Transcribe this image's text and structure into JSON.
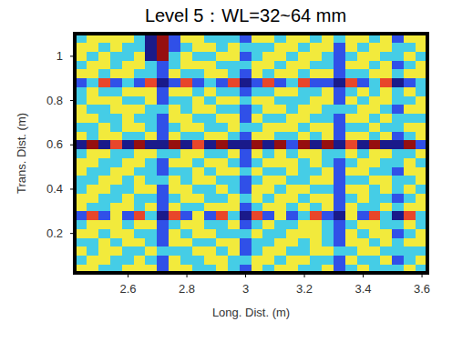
{
  "chart_data": {
    "type": "heatmap",
    "title": "Level 5：WL=32~64 mm",
    "x_label": "Long. Dist. (m)",
    "y_label": "Trans. Dist. (m)",
    "xlim": [
      2.42,
      3.62
    ],
    "xticks": [
      2.6,
      2.8,
      3,
      3.2,
      3.4,
      3.6
    ],
    "ylim": [
      0.02,
      1.1
    ],
    "yticks": [
      0.2,
      0.4,
      0.6,
      0.8,
      1
    ],
    "zlim": [
      -3,
      3
    ],
    "x": [
      2.44,
      2.48,
      2.52,
      2.56,
      2.6,
      2.64,
      2.68,
      2.72,
      2.76,
      2.8,
      2.84,
      2.88,
      2.92,
      2.96,
      3,
      3.04,
      3.08,
      3.12,
      3.16,
      3.2,
      3.24,
      3.28,
      3.32,
      3.36,
      3.4,
      3.44,
      3.48,
      3.52,
      3.56,
      3.6
    ],
    "y": [
      0.04,
      0.08,
      0.12,
      0.16,
      0.2,
      0.24,
      0.28,
      0.32,
      0.36,
      0.4,
      0.44,
      0.48,
      0.52,
      0.56,
      0.6,
      0.64,
      0.68,
      0.72,
      0.76,
      0.8,
      0.84,
      0.88,
      0.92,
      0.96,
      1,
      1.04,
      1.08
    ],
    "cells": [
      [
        1,
        1,
        -1,
        -1,
        1,
        1,
        1,
        -2,
        1,
        1,
        -1,
        -1,
        1,
        -1,
        -2,
        1,
        -1,
        1,
        1,
        -1,
        -1,
        1,
        -2,
        -1,
        1,
        -1,
        -1,
        -1,
        1,
        -1
      ],
      [
        -1,
        1,
        1,
        -1,
        -1,
        1,
        -1,
        -2,
        1,
        -1,
        -1,
        1,
        1,
        -1,
        -1,
        1,
        1,
        -1,
        1,
        1,
        -1,
        -1,
        -2,
        1,
        -1,
        -1,
        1,
        -2,
        -1,
        1
      ],
      [
        1,
        -1,
        1,
        1,
        -1,
        -1,
        1,
        -1,
        -1,
        -1,
        1,
        1,
        -1,
        1,
        -2,
        -1,
        1,
        1,
        -1,
        -1,
        1,
        1,
        -1,
        -1,
        1,
        1,
        -1,
        -1,
        -1,
        -1
      ],
      [
        -1,
        -1,
        1,
        -1,
        1,
        1,
        -1,
        -2,
        1,
        1,
        -1,
        -1,
        1,
        1,
        -2,
        -1,
        -1,
        1,
        1,
        -1,
        1,
        -1,
        -2,
        1,
        1,
        -1,
        1,
        -1,
        1,
        1
      ],
      [
        1,
        1,
        -1,
        1,
        1,
        -1,
        -1,
        -2,
        1,
        -1,
        1,
        1,
        -1,
        -1,
        -1,
        1,
        -1,
        -1,
        1,
        1,
        1,
        -1,
        -2,
        1,
        -1,
        1,
        1,
        -2,
        -1,
        1
      ],
      [
        -1,
        1,
        1,
        1,
        -1,
        1,
        1,
        -2,
        -1,
        1,
        1,
        -1,
        -1,
        1,
        -2,
        -1,
        1,
        -1,
        -1,
        1,
        1,
        -1,
        -2,
        -1,
        1,
        1,
        -1,
        -1,
        1,
        -1
      ],
      [
        -2,
        2,
        -2,
        1,
        -2,
        2,
        -1,
        -3,
        2,
        -2,
        1,
        -2,
        2,
        -1,
        -3,
        2,
        -2,
        1,
        -2,
        -1,
        2,
        -2,
        -3,
        1,
        -2,
        2,
        -1,
        -3,
        2,
        -1
      ],
      [
        1,
        -1,
        -1,
        1,
        1,
        -1,
        1,
        -2,
        1,
        -1,
        -1,
        1,
        1,
        1,
        -2,
        -1,
        1,
        1,
        -1,
        1,
        -1,
        1,
        -2,
        1,
        -1,
        -1,
        1,
        -1,
        1,
        1
      ],
      [
        1,
        1,
        -1,
        -1,
        1,
        -1,
        -1,
        -2,
        -1,
        1,
        1,
        -1,
        -1,
        1,
        -1,
        1,
        -1,
        1,
        1,
        -1,
        1,
        1,
        -2,
        -1,
        1,
        -1,
        -1,
        -2,
        -1,
        1
      ],
      [
        -1,
        1,
        1,
        -1,
        -1,
        1,
        1,
        -2,
        1,
        1,
        -1,
        -1,
        1,
        -1,
        -2,
        1,
        1,
        -1,
        1,
        1,
        -1,
        -1,
        -2,
        1,
        1,
        -1,
        1,
        -1,
        1,
        -1
      ],
      [
        -1,
        -1,
        1,
        1,
        -1,
        1,
        -1,
        -1,
        1,
        -1,
        1,
        1,
        -1,
        -1,
        -2,
        -1,
        1,
        1,
        -1,
        -1,
        1,
        1,
        -2,
        -1,
        -1,
        1,
        1,
        -1,
        -1,
        1
      ],
      [
        1,
        -1,
        -1,
        1,
        1,
        -1,
        -1,
        -2,
        -1,
        -1,
        1,
        -1,
        1,
        1,
        -1,
        1,
        -1,
        -1,
        1,
        -1,
        -1,
        1,
        -2,
        1,
        1,
        -1,
        -1,
        -2,
        1,
        1
      ],
      [
        1,
        1,
        -1,
        -1,
        1,
        1,
        -1,
        -2,
        1,
        1,
        -1,
        1,
        1,
        -1,
        -2,
        -1,
        1,
        1,
        1,
        -1,
        1,
        -1,
        -2,
        -1,
        1,
        1,
        -1,
        -1,
        1,
        -1
      ],
      [
        -1,
        1,
        1,
        -1,
        -1,
        1,
        1,
        -1,
        -1,
        1,
        1,
        -1,
        -1,
        1,
        -2,
        1,
        -1,
        1,
        -1,
        1,
        1,
        -1,
        -1,
        1,
        -1,
        1,
        1,
        -1,
        -1,
        1
      ],
      [
        -3,
        3,
        -3,
        2,
        -3,
        3,
        -3,
        -3,
        3,
        -3,
        2,
        -3,
        3,
        -3,
        -3,
        3,
        -3,
        3,
        -2,
        3,
        -3,
        3,
        -3,
        2,
        -3,
        3,
        -3,
        -3,
        3,
        -2
      ],
      [
        1,
        -1,
        1,
        1,
        -1,
        -1,
        1,
        -2,
        1,
        -1,
        -1,
        1,
        1,
        -1,
        -2,
        1,
        1,
        -1,
        -1,
        1,
        -1,
        1,
        -2,
        1,
        1,
        -1,
        1,
        -2,
        -1,
        1
      ],
      [
        -1,
        -1,
        1,
        -1,
        1,
        1,
        -1,
        -2,
        -1,
        1,
        1,
        -1,
        -1,
        1,
        -1,
        -1,
        1,
        1,
        1,
        -1,
        1,
        1,
        -2,
        -1,
        -1,
        1,
        -1,
        -1,
        1,
        1
      ],
      [
        1,
        1,
        -1,
        -1,
        1,
        -1,
        -1,
        -2,
        1,
        1,
        -1,
        -1,
        1,
        1,
        -2,
        1,
        -1,
        -1,
        1,
        1,
        -1,
        -1,
        -2,
        1,
        1,
        -1,
        1,
        -1,
        -1,
        -1
      ],
      [
        1,
        -1,
        -1,
        1,
        1,
        1,
        -1,
        -1,
        1,
        -1,
        1,
        1,
        -1,
        -1,
        -2,
        -1,
        1,
        1,
        -1,
        1,
        1,
        -1,
        -1,
        -1,
        1,
        1,
        -1,
        -2,
        1,
        1
      ],
      [
        -1,
        1,
        1,
        1,
        -1,
        -1,
        1,
        -2,
        -1,
        -1,
        1,
        -1,
        1,
        1,
        -1,
        1,
        1,
        -1,
        -1,
        -1,
        1,
        1,
        -2,
        1,
        -1,
        1,
        1,
        -1,
        -1,
        1
      ],
      [
        -1,
        1,
        -1,
        -1,
        1,
        1,
        1,
        -2,
        1,
        1,
        -1,
        1,
        -1,
        -1,
        -2,
        -1,
        -1,
        1,
        1,
        -1,
        -1,
        1,
        -2,
        -1,
        1,
        -1,
        1,
        -1,
        1,
        -1
      ],
      [
        -2,
        -1,
        2,
        -2,
        -1,
        -2,
        2,
        -3,
        -2,
        2,
        -2,
        -1,
        -2,
        2,
        -3,
        -2,
        2,
        -2,
        -1,
        2,
        -2,
        -2,
        -3,
        2,
        -2,
        -1,
        2,
        -3,
        -2,
        -1
      ],
      [
        1,
        1,
        -1,
        1,
        1,
        -1,
        -1,
        -2,
        1,
        -1,
        -1,
        1,
        1,
        -1,
        -2,
        1,
        -1,
        1,
        1,
        -1,
        1,
        1,
        -2,
        -1,
        -1,
        1,
        1,
        -1,
        1,
        1
      ],
      [
        -1,
        1,
        1,
        -1,
        1,
        1,
        -1,
        -2,
        -1,
        1,
        1,
        1,
        -1,
        -1,
        -1,
        1,
        1,
        -1,
        1,
        1,
        -1,
        -1,
        -2,
        1,
        1,
        -1,
        1,
        -2,
        -1,
        1
      ],
      [
        1,
        -1,
        1,
        -1,
        -1,
        1,
        -3,
        3,
        -1,
        1,
        -1,
        -1,
        1,
        1,
        -2,
        -1,
        1,
        1,
        -1,
        1,
        1,
        -1,
        -2,
        -1,
        1,
        1,
        -1,
        -1,
        1,
        -1
      ],
      [
        1,
        1,
        -1,
        1,
        -1,
        -1,
        -3,
        3,
        -2,
        -1,
        1,
        1,
        -1,
        1,
        -1,
        -1,
        -1,
        1,
        1,
        -1,
        1,
        1,
        -2,
        1,
        -1,
        1,
        1,
        -1,
        -1,
        1
      ],
      [
        -1,
        1,
        1,
        1,
        1,
        -1,
        -3,
        3,
        -2,
        1,
        1,
        -1,
        -1,
        -1,
        -2,
        1,
        1,
        -1,
        1,
        1,
        -1,
        1,
        -1,
        1,
        1,
        -1,
        1,
        -2,
        1,
        1
      ]
    ]
  }
}
